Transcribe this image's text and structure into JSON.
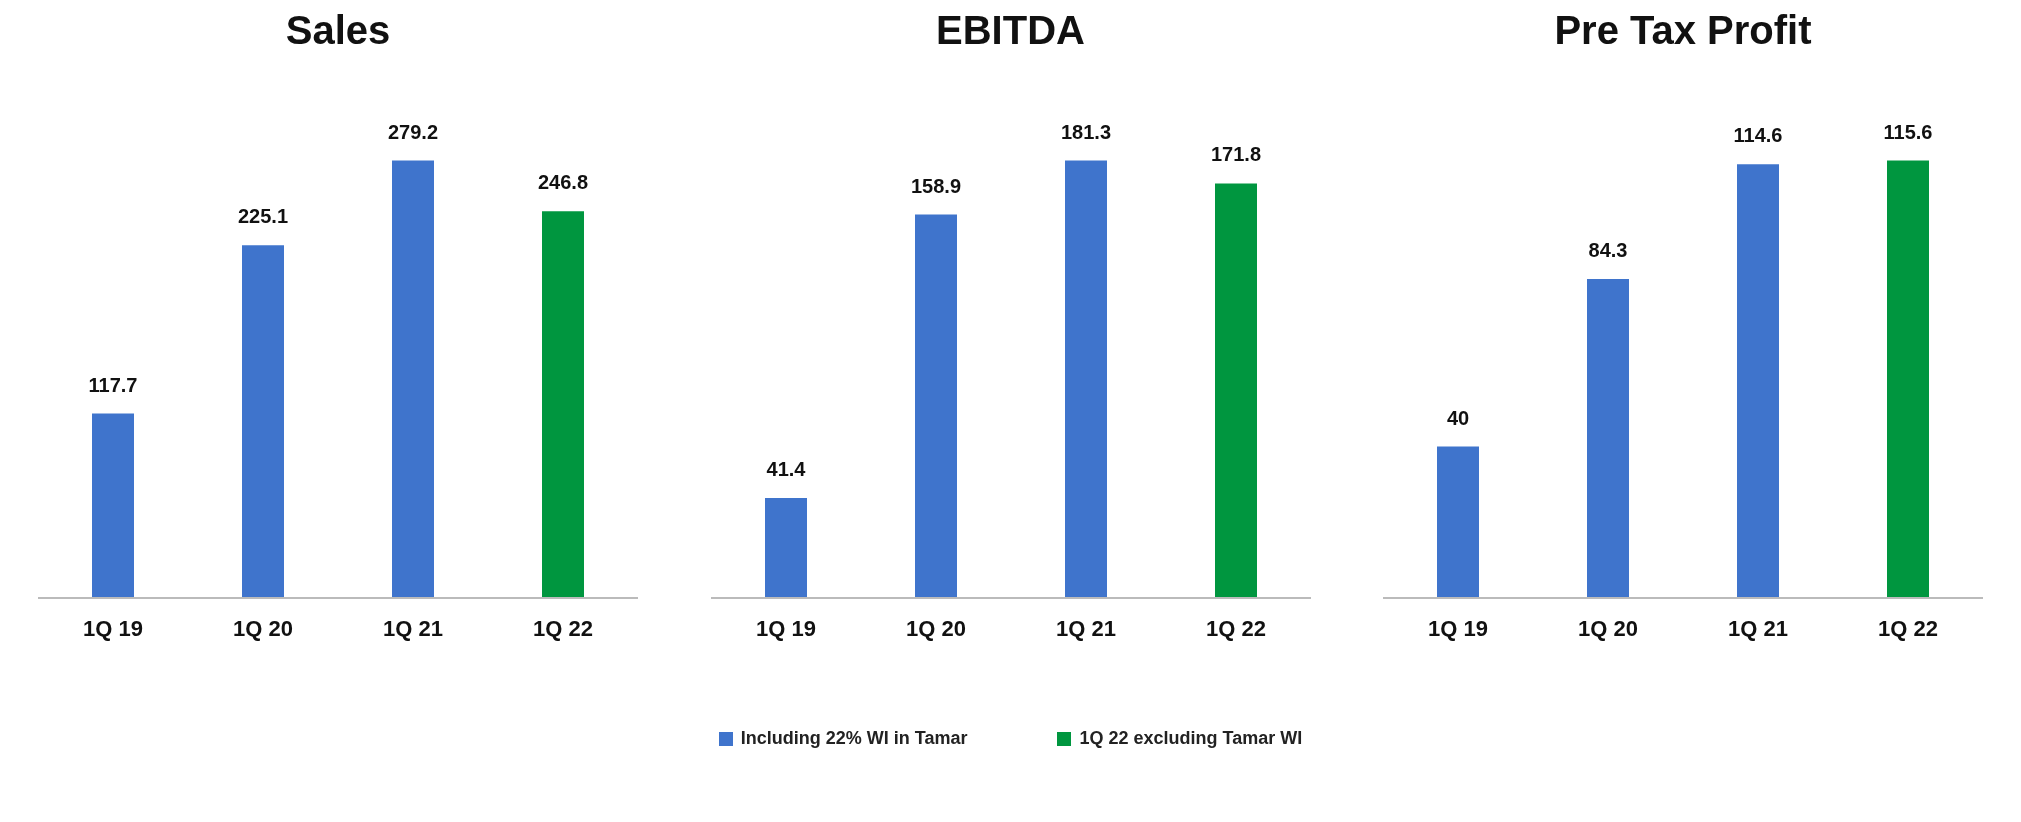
{
  "chart_data": [
    {
      "type": "bar",
      "title": "Sales",
      "categories": [
        "1Q 19",
        "1Q 20",
        "1Q 21",
        "1Q 22"
      ],
      "stacked": true,
      "data_labels": true,
      "legend": "bottom",
      "series": [
        {
          "name": "Including 22% WI in Tamar",
          "color": "#3f74cc",
          "values": [
            117.7,
            225.1,
            279.2,
            null
          ]
        },
        {
          "name": "1Q 22 excluding Tamar WI",
          "color": "#00963f",
          "values": [
            null,
            null,
            null,
            246.8
          ]
        }
      ]
    },
    {
      "type": "bar",
      "title": "EBITDA",
      "categories": [
        "1Q 19",
        "1Q 20",
        "1Q 21",
        "1Q 22"
      ],
      "stacked": true,
      "data_labels": true,
      "series": [
        {
          "color": "#3f74cc",
          "values": [
            41.4,
            158.9,
            181.3,
            null
          ]
        },
        {
          "color": "#00963f",
          "values": [
            null,
            null,
            null,
            171.8
          ]
        }
      ]
    },
    {
      "type": "bar",
      "title": "Pre Tax Profit",
      "categories": [
        "1Q 19",
        "1Q 20",
        "1Q 21",
        "1Q 22"
      ],
      "stacked": true,
      "data_labels": true,
      "series": [
        {
          "color": "#3f74cc",
          "values": [
            40,
            84.3,
            114.6,
            null
          ]
        },
        {
          "color": "#00963f",
          "values": [
            null,
            null,
            null,
            115.6
          ]
        }
      ]
    }
  ]
}
